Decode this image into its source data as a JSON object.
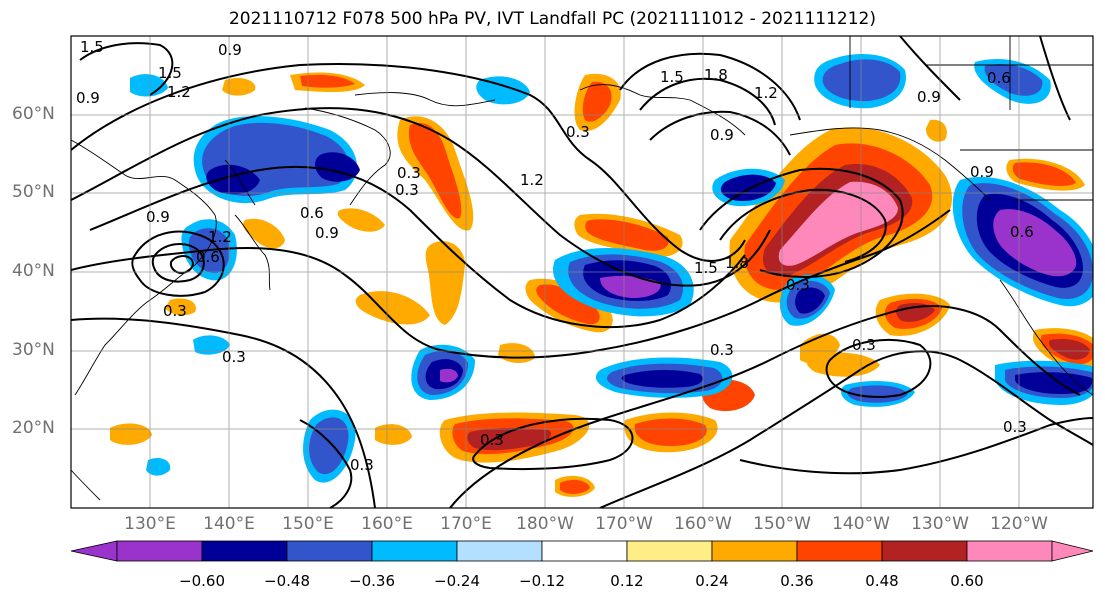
{
  "title": "2021110712 F078 500 hPa PV, IVT Landfall PC (2021111012 - 2021111212)",
  "lat_labels": [
    "60°N",
    "50°N",
    "40°N",
    "30°N",
    "20°N"
  ],
  "lon_labels": [
    "130°E",
    "140°E",
    "150°E",
    "160°E",
    "170°E",
    "180°W",
    "170°W",
    "160°W",
    "150°W",
    "140°W",
    "130°W",
    "120°W"
  ],
  "colorbar": {
    "tick_labels": [
      "−0.60",
      "−0.48",
      "−0.36",
      "−0.24",
      "−0.12",
      "0.12",
      "0.24",
      "0.36",
      "0.48",
      "0.60"
    ],
    "colors": [
      "#9933cc",
      "#000099",
      "#3355cc",
      "#00bbff",
      "#b3e0ff",
      "#ffffff",
      "#ffee88",
      "#ffaa00",
      "#ff4400",
      "#b22222",
      "#ff88bb"
    ]
  },
  "contour_labels": [
    "1.5",
    "1.5",
    "1.2",
    "0.9",
    "0.9",
    "0.6",
    "0.3",
    "0.9",
    "1.2",
    "0.3",
    "0.6",
    "0.9",
    "1.5",
    "1.8",
    "1.2",
    "0.9",
    "0.9",
    "0.6",
    "0.9",
    "0.6",
    "0.3",
    "1.2",
    "1.5",
    "1.8",
    "0.3",
    "0.3",
    "0.3",
    "0.3",
    "0.3",
    "0.3",
    "0.3",
    "0.3"
  ]
}
